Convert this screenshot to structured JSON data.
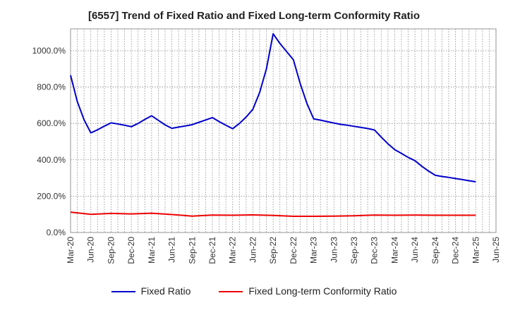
{
  "chart_data": {
    "type": "line",
    "title": "[6557]  Trend of Fixed Ratio and Fixed Long-term Conformity Ratio",
    "xlabel": "",
    "ylabel": "",
    "ylim": [
      0,
      1120
    ],
    "y_ticks": [
      "0.0%",
      "200.0%",
      "400.0%",
      "600.0%",
      "800.0%",
      "1000.0%"
    ],
    "y_tick_values": [
      0,
      200,
      400,
      600,
      800,
      1000
    ],
    "x_ticks": [
      "Mar-20",
      "Jun-20",
      "Sep-20",
      "Dec-20",
      "Mar-21",
      "Jun-21",
      "Sep-21",
      "Dec-21",
      "Mar-22",
      "Jun-22",
      "Sep-22",
      "Dec-22",
      "Mar-23",
      "Jun-23",
      "Sep-23",
      "Dec-23",
      "Mar-24",
      "Jun-24",
      "Sep-24",
      "Dec-24",
      "Mar-25",
      "Jun-25"
    ],
    "grid": true,
    "legend_position": "bottom",
    "series": [
      {
        "name": "Fixed Ratio",
        "color": "#0000cc",
        "points": [
          [
            "Mar-20",
            865
          ],
          [
            "Apr-20",
            720
          ],
          [
            "May-20",
            620
          ],
          [
            "Jun-20",
            548
          ],
          [
            "Jul-20",
            565
          ],
          [
            "Aug-20",
            585
          ],
          [
            "Sep-20",
            603
          ],
          [
            "Oct-20",
            597
          ],
          [
            "Nov-20",
            590
          ],
          [
            "Dec-20",
            582
          ],
          [
            "Jan-21",
            600
          ],
          [
            "Feb-21",
            622
          ],
          [
            "Mar-21",
            642
          ],
          [
            "Apr-21",
            617
          ],
          [
            "May-21",
            592
          ],
          [
            "Jun-21",
            573
          ],
          [
            "Jul-21",
            580
          ],
          [
            "Aug-21",
            586
          ],
          [
            "Sep-21",
            593
          ],
          [
            "Oct-21",
            606
          ],
          [
            "Nov-21",
            619
          ],
          [
            "Dec-21",
            632
          ],
          [
            "Jan-22",
            610
          ],
          [
            "Feb-22",
            590
          ],
          [
            "Mar-22",
            571
          ],
          [
            "Apr-22",
            600
          ],
          [
            "May-22",
            635
          ],
          [
            "Jun-22",
            678
          ],
          [
            "Jul-22",
            770
          ],
          [
            "Aug-22",
            900
          ],
          [
            "Sep-22",
            1093
          ],
          [
            "Oct-22",
            1040
          ],
          [
            "Nov-22",
            995
          ],
          [
            "Dec-22",
            950
          ],
          [
            "Jan-23",
            820
          ],
          [
            "Feb-23",
            710
          ],
          [
            "Mar-23",
            625
          ],
          [
            "Apr-23",
            618
          ],
          [
            "May-23",
            610
          ],
          [
            "Jun-23",
            602
          ],
          [
            "Jul-23",
            595
          ],
          [
            "Aug-23",
            590
          ],
          [
            "Sep-23",
            584
          ],
          [
            "Oct-23",
            578
          ],
          [
            "Nov-23",
            572
          ],
          [
            "Dec-23",
            564
          ],
          [
            "Jan-24",
            525
          ],
          [
            "Feb-24",
            488
          ],
          [
            "Mar-24",
            456
          ],
          [
            "Apr-24",
            435
          ],
          [
            "May-24",
            413
          ],
          [
            "Jun-24",
            395
          ],
          [
            "Jul-24",
            365
          ],
          [
            "Aug-24",
            338
          ],
          [
            "Sep-24",
            315
          ],
          [
            "Oct-24",
            308
          ],
          [
            "Nov-24",
            303
          ],
          [
            "Dec-24",
            297
          ],
          [
            "Jan-25",
            291
          ],
          [
            "Feb-25",
            285
          ],
          [
            "Mar-25",
            279
          ]
        ]
      },
      {
        "name": "Fixed Long-term Conformity Ratio",
        "color": "#ee0000",
        "points": [
          [
            "Mar-20",
            112
          ],
          [
            "Jun-20",
            100
          ],
          [
            "Sep-20",
            105
          ],
          [
            "Dec-20",
            102
          ],
          [
            "Mar-21",
            106
          ],
          [
            "Jun-21",
            99
          ],
          [
            "Sep-21",
            90
          ],
          [
            "Dec-21",
            96
          ],
          [
            "Mar-22",
            95
          ],
          [
            "Jun-22",
            97
          ],
          [
            "Sep-22",
            94
          ],
          [
            "Dec-22",
            89
          ],
          [
            "Mar-23",
            89
          ],
          [
            "Jun-23",
            90
          ],
          [
            "Sep-23",
            92
          ],
          [
            "Dec-23",
            96
          ],
          [
            "Mar-24",
            95
          ],
          [
            "Jun-24",
            96
          ],
          [
            "Sep-24",
            95
          ],
          [
            "Dec-24",
            95
          ],
          [
            "Mar-25",
            95
          ]
        ]
      }
    ]
  }
}
